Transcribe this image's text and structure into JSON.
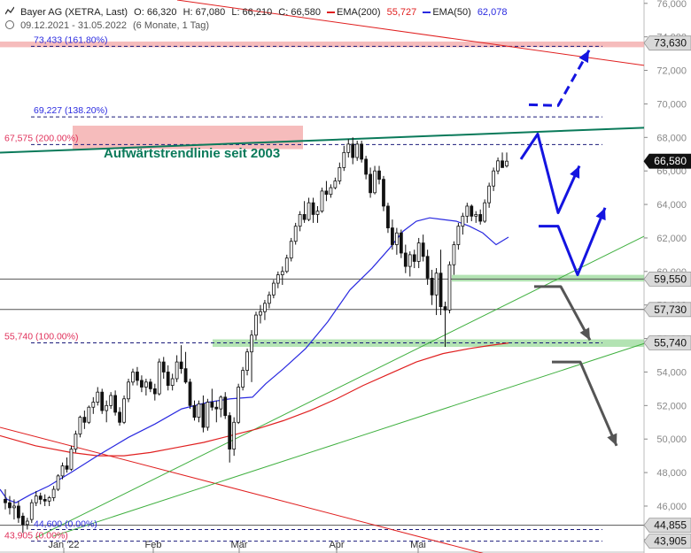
{
  "header": {
    "title": "Bayer AG (XETRA, Last)",
    "open": "O: 66,320",
    "high": "H: 67,080",
    "low": "L: 66,210",
    "close": "C: 66,580",
    "ema200_label": "EMA(200)",
    "ema200_value": "55,727",
    "ema50_label": "EMA(50)",
    "ema50_value": "62,078",
    "period": "09.12.2021 - 31.05.2022",
    "timeframe": "(6 Monate, 1 Tag)"
  },
  "colors": {
    "ema200": "#e02020",
    "ema50": "#2a2ae0",
    "trend": "#0a7a5a",
    "candle": "#111111",
    "green_zone": "#9ad99a",
    "red_zone": "#f4b0b0",
    "arrow_blue": "#1414e0",
    "arrow_gray": "#555555"
  },
  "chart_data": {
    "type": "candlestick",
    "ylim": [
      43.2,
      76.2
    ],
    "y_ticks": [
      "44,000",
      "46,000",
      "48,000",
      "50,000",
      "52,000",
      "54,000",
      "56,000",
      "58,000",
      "60,000",
      "62,000",
      "64,000",
      "66,000",
      "68,000",
      "70,000",
      "72,000",
      "74,000",
      "76,000"
    ],
    "x_labels": [
      "Jan '22",
      "Feb",
      "Mär",
      "Apr",
      "Mai"
    ],
    "price_labels": [
      {
        "label": "73,630",
        "value": 73.63,
        "style": "gray"
      },
      {
        "label": "66,580",
        "value": 66.58,
        "style": "dark"
      },
      {
        "label": "59,550",
        "value": 59.55,
        "style": "gray"
      },
      {
        "label": "57,730",
        "value": 57.73,
        "style": "gray"
      },
      {
        "label": "55,740",
        "value": 55.74,
        "style": "gray"
      },
      {
        "label": "44,855",
        "value": 44.855,
        "style": "gray"
      },
      {
        "label": "43,905",
        "value": 43.905,
        "style": "gray"
      }
    ],
    "fibonacci": [
      {
        "label": "73,433 (161.80%)",
        "value": 73.433,
        "color": "#2a2ae0"
      },
      {
        "label": "69,227 (138.20%)",
        "value": 69.227,
        "color": "#2a2ae0"
      },
      {
        "label": "67,575 (200.00%)",
        "value": 67.575,
        "color": "#e0305a"
      },
      {
        "label": "55,740 (100.00%)",
        "value": 55.74,
        "color": "#e0305a"
      },
      {
        "label": "44,600 (0.00%)",
        "value": 44.6,
        "color": "#2a2ae0"
      },
      {
        "label": "43,905 (0.00%)",
        "value": 43.905,
        "color": "#e0305a"
      }
    ],
    "annotation": "Aufwärtstrendlinie seit 2003",
    "candles": [
      [
        46.4,
        47.0,
        45.8,
        46.2
      ],
      [
        46.2,
        46.6,
        45.5,
        45.9
      ],
      [
        45.9,
        46.4,
        45.2,
        46.0
      ],
      [
        46.0,
        46.3,
        45.0,
        45.3
      ],
      [
        45.4,
        45.6,
        44.4,
        44.9
      ],
      [
        44.9,
        45.3,
        44.6,
        45.1
      ],
      [
        45.2,
        46.4,
        45.0,
        46.2
      ],
      [
        46.2,
        46.9,
        46.0,
        46.6
      ],
      [
        46.6,
        46.8,
        46.1,
        46.4
      ],
      [
        46.4,
        46.7,
        46.0,
        46.3
      ],
      [
        46.3,
        46.6,
        46.0,
        46.5
      ],
      [
        46.5,
        47.2,
        46.3,
        47.0
      ],
      [
        47.0,
        47.9,
        46.9,
        47.8
      ],
      [
        47.8,
        48.6,
        47.6,
        48.4
      ],
      [
        48.4,
        48.9,
        48.0,
        48.2
      ],
      [
        48.2,
        49.6,
        48.1,
        49.4
      ],
      [
        49.4,
        50.5,
        49.2,
        50.3
      ],
      [
        50.3,
        51.4,
        50.1,
        51.3
      ],
      [
        51.3,
        51.7,
        50.6,
        51.0
      ],
      [
        51.0,
        52.0,
        50.9,
        51.9
      ],
      [
        51.9,
        52.5,
        51.5,
        52.2
      ],
      [
        52.2,
        53.1,
        52.0,
        52.8
      ],
      [
        52.8,
        53.0,
        51.5,
        51.7
      ],
      [
        51.7,
        52.3,
        51.0,
        52.0
      ],
      [
        52.0,
        52.8,
        51.8,
        52.6
      ],
      [
        52.6,
        52.9,
        51.4,
        51.6
      ],
      [
        51.6,
        51.9,
        50.8,
        51.0
      ],
      [
        51.0,
        52.6,
        50.9,
        52.4
      ],
      [
        52.4,
        53.6,
        52.2,
        53.4
      ],
      [
        53.4,
        54.2,
        53.2,
        54.0
      ],
      [
        54.0,
        54.3,
        53.2,
        53.5
      ],
      [
        53.5,
        53.8,
        52.8,
        53.1
      ],
      [
        53.1,
        53.6,
        52.6,
        53.4
      ],
      [
        53.4,
        53.6,
        52.8,
        53.0
      ],
      [
        53.0,
        53.3,
        52.3,
        52.7
      ],
      [
        52.7,
        54.8,
        52.6,
        54.6
      ],
      [
        54.6,
        54.9,
        53.6,
        54.0
      ],
      [
        54.0,
        54.4,
        52.9,
        53.2
      ],
      [
        53.2,
        53.9,
        52.9,
        53.6
      ],
      [
        53.6,
        55.0,
        53.4,
        54.6
      ],
      [
        54.6,
        55.6,
        53.9,
        54.2
      ],
      [
        54.2,
        55.2,
        53.3,
        53.4
      ],
      [
        53.4,
        53.6,
        51.8,
        52.0
      ],
      [
        52.0,
        52.3,
        51.1,
        51.3
      ],
      [
        51.3,
        52.3,
        51.0,
        52.1
      ],
      [
        52.1,
        52.6,
        50.4,
        50.7
      ],
      [
        50.7,
        52.4,
        50.5,
        52.2
      ],
      [
        52.2,
        53.0,
        51.7,
        51.9
      ],
      [
        51.9,
        52.3,
        51.0,
        51.8
      ],
      [
        51.8,
        52.6,
        51.3,
        52.5
      ],
      [
        52.5,
        52.8,
        51.2,
        51.4
      ],
      [
        51.4,
        51.6,
        48.6,
        49.4
      ],
      [
        49.4,
        51.3,
        49.0,
        51.0
      ],
      [
        51.0,
        53.3,
        50.9,
        53.1
      ],
      [
        53.1,
        54.3,
        52.9,
        54.1
      ],
      [
        54.1,
        55.4,
        53.8,
        55.2
      ],
      [
        55.2,
        56.5,
        53.4,
        56.2
      ],
      [
        56.2,
        57.6,
        55.9,
        57.4
      ],
      [
        57.4,
        58.0,
        56.9,
        57.6
      ],
      [
        57.6,
        58.3,
        57.1,
        58.1
      ],
      [
        58.1,
        58.8,
        57.8,
        58.6
      ],
      [
        58.6,
        59.5,
        58.4,
        59.3
      ],
      [
        59.3,
        60.0,
        59.0,
        59.8
      ],
      [
        59.8,
        60.3,
        59.2,
        60.0
      ],
      [
        60.0,
        61.0,
        59.9,
        60.8
      ],
      [
        60.8,
        62.0,
        60.6,
        61.8
      ],
      [
        61.8,
        62.9,
        61.6,
        62.7
      ],
      [
        62.7,
        63.6,
        62.4,
        63.4
      ],
      [
        63.4,
        64.2,
        62.9,
        63.1
      ],
      [
        63.1,
        64.4,
        63.0,
        64.1
      ],
      [
        64.1,
        64.4,
        62.9,
        63.4
      ],
      [
        63.4,
        63.9,
        62.9,
        63.6
      ],
      [
        63.6,
        65.0,
        63.5,
        64.8
      ],
      [
        64.8,
        65.4,
        64.2,
        64.6
      ],
      [
        64.6,
        65.2,
        64.4,
        65.0
      ],
      [
        65.0,
        65.6,
        64.9,
        65.4
      ],
      [
        65.4,
        66.5,
        65.2,
        66.2
      ],
      [
        66.2,
        67.5,
        66.0,
        67.1
      ],
      [
        67.1,
        67.9,
        66.8,
        67.6
      ],
      [
        67.6,
        68.0,
        66.4,
        66.8
      ],
      [
        66.8,
        67.8,
        66.6,
        67.6
      ],
      [
        67.6,
        67.8,
        66.5,
        66.7
      ],
      [
        66.7,
        66.9,
        65.5,
        65.8
      ],
      [
        65.8,
        66.2,
        64.4,
        64.7
      ],
      [
        64.7,
        66.3,
        64.6,
        66.0
      ],
      [
        66.0,
        66.3,
        65.2,
        65.5
      ],
      [
        65.5,
        65.7,
        63.6,
        63.9
      ],
      [
        63.9,
        64.1,
        62.3,
        62.6
      ],
      [
        62.6,
        63.1,
        61.3,
        61.6
      ],
      [
        61.6,
        62.6,
        61.0,
        62.3
      ],
      [
        62.3,
        62.5,
        60.8,
        61.1
      ],
      [
        61.1,
        61.6,
        59.9,
        60.3
      ],
      [
        60.3,
        61.2,
        59.7,
        61.0
      ],
      [
        61.0,
        61.3,
        60.2,
        60.6
      ],
      [
        60.6,
        62.0,
        60.2,
        61.7
      ],
      [
        61.7,
        62.2,
        60.6,
        60.9
      ],
      [
        60.9,
        61.3,
        59.2,
        59.6
      ],
      [
        59.6,
        60.1,
        58.0,
        58.6
      ],
      [
        58.6,
        60.2,
        57.4,
        59.9
      ],
      [
        59.9,
        61.3,
        57.4,
        57.9
      ],
      [
        57.9,
        58.2,
        55.5,
        57.7
      ],
      [
        57.7,
        60.6,
        57.5,
        60.4
      ],
      [
        60.4,
        61.8,
        59.8,
        61.6
      ],
      [
        61.6,
        62.9,
        61.3,
        62.7
      ],
      [
        62.7,
        63.5,
        62.2,
        63.3
      ],
      [
        63.3,
        64.1,
        62.9,
        63.9
      ],
      [
        63.9,
        64.0,
        63.0,
        63.3
      ],
      [
        63.3,
        63.6,
        62.9,
        63.4
      ],
      [
        63.4,
        63.7,
        62.8,
        63.0
      ],
      [
        63.0,
        64.3,
        62.9,
        64.1
      ],
      [
        64.1,
        65.3,
        63.8,
        65.1
      ],
      [
        65.1,
        66.2,
        64.8,
        66.0
      ],
      [
        66.0,
        66.8,
        65.8,
        66.6
      ],
      [
        66.6,
        67.1,
        66.2,
        66.2
      ],
      [
        66.3,
        67.1,
        66.2,
        66.58
      ]
    ],
    "ema50": [
      [
        0,
        47.0
      ],
      [
        8,
        46.4
      ],
      [
        18,
        46.2
      ],
      [
        35,
        46.7
      ],
      [
        55,
        47.2
      ],
      [
        80,
        48.0
      ],
      [
        110,
        49.0
      ],
      [
        145,
        50.1
      ],
      [
        175,
        50.9
      ],
      [
        205,
        51.8
      ],
      [
        235,
        52.2
      ],
      [
        260,
        52.4
      ],
      [
        285,
        52.5
      ],
      [
        300,
        53.3
      ],
      [
        320,
        54.2
      ],
      [
        345,
        55.4
      ],
      [
        370,
        57.0
      ],
      [
        395,
        58.9
      ],
      [
        420,
        60.2
      ],
      [
        440,
        61.4
      ],
      [
        455,
        62.4
      ],
      [
        470,
        63.0
      ],
      [
        485,
        63.2
      ],
      [
        500,
        63.1
      ],
      [
        515,
        63.0
      ],
      [
        530,
        62.7
      ],
      [
        545,
        62.3
      ],
      [
        560,
        61.6
      ],
      [
        574,
        62.05
      ]
    ],
    "ema200": [
      [
        0,
        50.2
      ],
      [
        40,
        49.6
      ],
      [
        80,
        49.2
      ],
      [
        110,
        49.0
      ],
      [
        140,
        49.0
      ],
      [
        170,
        49.2
      ],
      [
        200,
        49.5
      ],
      [
        230,
        49.8
      ],
      [
        260,
        50.2
      ],
      [
        290,
        50.6
      ],
      [
        320,
        51.1
      ],
      [
        350,
        51.7
      ],
      [
        380,
        52.4
      ],
      [
        410,
        53.2
      ],
      [
        440,
        53.9
      ],
      [
        470,
        54.6
      ],
      [
        500,
        55.1
      ],
      [
        530,
        55.4
      ],
      [
        555,
        55.6
      ],
      [
        574,
        55.73
      ]
    ],
    "trendlines": [
      {
        "name": "aufwaertstrend",
        "color": "#0a7a5a",
        "width": 2,
        "from": [
          0,
          67.09
        ],
        "to": [
          727,
          68.58
        ]
      },
      {
        "name": "red-resistance",
        "color": "#e02020",
        "width": 1,
        "from": [
          200,
          76.2
        ],
        "to": [
          727,
          72.3
        ]
      },
      {
        "name": "red-downtrend",
        "color": "#e02020",
        "width": 1,
        "from": [
          0,
          50.7
        ],
        "to": [
          580,
          42.7
        ]
      },
      {
        "name": "green-trend-1",
        "color": "#40b040",
        "width": 1,
        "from": [
          40,
          44.1
        ],
        "to": [
          727,
          62.1
        ]
      },
      {
        "name": "green-trend-2",
        "color": "#40b040",
        "width": 1,
        "from": [
          60,
          44.2
        ],
        "to": [
          727,
          55.7
        ]
      }
    ],
    "hlines": [
      {
        "value": 59.55,
        "color": "#555555"
      },
      {
        "value": 57.73,
        "color": "#555555"
      },
      {
        "value": 44.855,
        "color": "#555555"
      }
    ],
    "zones": [
      {
        "type": "green",
        "x": [
          510,
          727
        ],
        "y": [
          59.4,
          59.8
        ]
      },
      {
        "type": "green",
        "x": [
          240,
          727
        ],
        "y": [
          55.5,
          55.95
        ]
      },
      {
        "type": "red",
        "x": [
          82,
          342
        ],
        "y": [
          67.3,
          68.7
        ]
      },
      {
        "type": "red",
        "x": [
          0,
          727
        ],
        "y": [
          73.38,
          73.72
        ]
      }
    ],
    "arrows": [
      {
        "color": "#1414e0",
        "dashed": true,
        "points": [
          [
            597,
            69.95
          ],
          [
            630,
            69.9
          ],
          [
            665,
            73.2
          ]
        ]
      },
      {
        "color": "#1414e0",
        "dashed": false,
        "points": [
          [
            588,
            66.7
          ],
          [
            607,
            68.2
          ],
          [
            630,
            63.5
          ],
          [
            654,
            66.3
          ]
        ]
      },
      {
        "color": "#1414e0",
        "dashed": false,
        "points": [
          [
            608,
            62.7
          ],
          [
            630,
            62.7
          ],
          [
            652,
            59.8
          ],
          [
            683,
            63.8
          ]
        ]
      },
      {
        "color": "#555555",
        "dashed": false,
        "points": [
          [
            603,
            59.1
          ],
          [
            633,
            59.1
          ],
          [
            666,
            55.9
          ]
        ]
      },
      {
        "color": "#555555",
        "dashed": false,
        "points": [
          [
            623,
            54.6
          ],
          [
            655,
            54.6
          ],
          [
            696,
            49.6
          ]
        ]
      }
    ]
  }
}
